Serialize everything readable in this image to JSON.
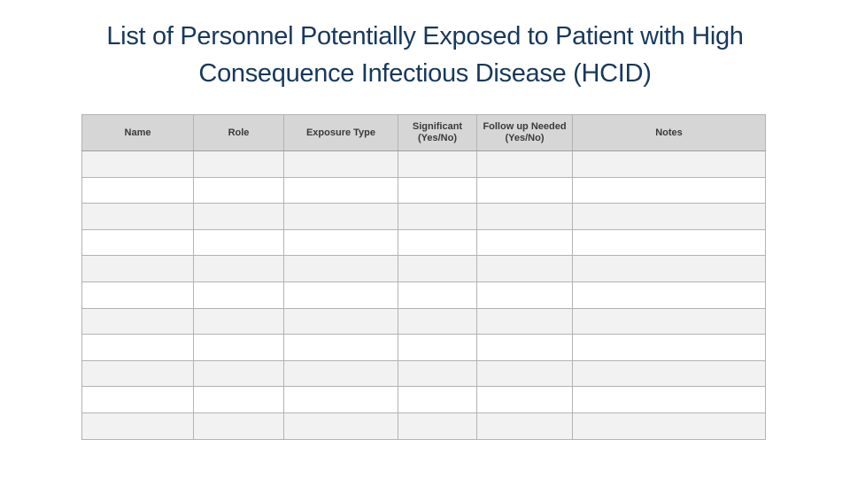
{
  "slide": {
    "title_line1": "List of Personnel Potentially Exposed to Patient with High",
    "title_line2": "Consequence Infectious Disease (HCID)",
    "title_color": "#17395e",
    "background_color": "#ffffff"
  },
  "table": {
    "columns": [
      {
        "label": "Name"
      },
      {
        "label": "Role"
      },
      {
        "label": "Exposure Type"
      },
      {
        "label": "Significant\n(Yes/No)"
      },
      {
        "label": "Follow up Needed\n(Yes/No)"
      },
      {
        "label": "Notes"
      }
    ],
    "body_rows": [
      [
        "",
        "",
        "",
        "",
        "",
        ""
      ],
      [
        "",
        "",
        "",
        "",
        "",
        ""
      ],
      [
        "",
        "",
        "",
        "",
        "",
        ""
      ],
      [
        "",
        "",
        "",
        "",
        "",
        ""
      ],
      [
        "",
        "",
        "",
        "",
        "",
        ""
      ],
      [
        "",
        "",
        "",
        "",
        "",
        ""
      ],
      [
        "",
        "",
        "",
        "",
        "",
        ""
      ],
      [
        "",
        "",
        "",
        "",
        "",
        ""
      ],
      [
        "",
        "",
        "",
        "",
        "",
        ""
      ],
      [
        "",
        "",
        "",
        "",
        "",
        ""
      ],
      [
        "",
        "",
        "",
        "",
        "",
        ""
      ]
    ],
    "colors": {
      "header_bg": "#d6d6d6",
      "header_text": "#3a3a3a",
      "row_bg": "#ffffff",
      "row_alt_bg": "#f2f2f2",
      "border": "#b3b3b3"
    }
  }
}
